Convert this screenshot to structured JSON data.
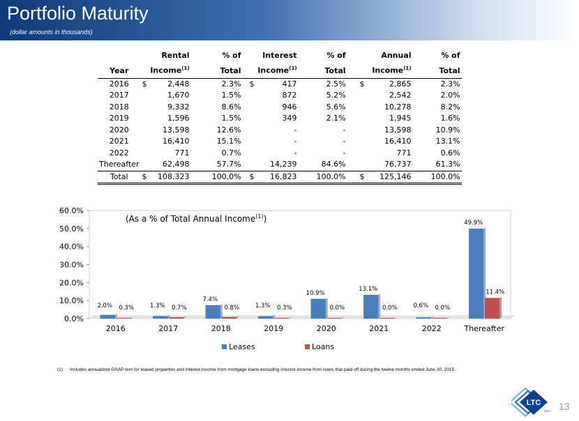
{
  "header": {
    "title": "Portfolio Maturity",
    "subtitle": "(dollar amounts in thousands)"
  },
  "table": {
    "headers": {
      "year": "Year",
      "rental": "Rental",
      "rental2": "Income",
      "pct": "% of",
      "pct2": "Total",
      "interest": "Interest",
      "interest2": "Income",
      "annual": "Annual",
      "annual2": "Income",
      "footnote_mark": "(1)"
    },
    "rows": [
      {
        "year": "2016",
        "rental_cur": "$",
        "rental": "2,448",
        "rental_pct": "2.3%",
        "int_cur": "$",
        "interest": "417",
        "int_pct": "2.5%",
        "ann_cur": "$",
        "annual": "2,865",
        "ann_pct": "2.3%"
      },
      {
        "year": "2017",
        "rental_cur": "",
        "rental": "1,670",
        "rental_pct": "1.5%",
        "int_cur": "",
        "interest": "872",
        "int_pct": "5.2%",
        "ann_cur": "",
        "annual": "2,542",
        "ann_pct": "2.0%"
      },
      {
        "year": "2018",
        "rental_cur": "",
        "rental": "9,332",
        "rental_pct": "8.6%",
        "int_cur": "",
        "interest": "946",
        "int_pct": "5.6%",
        "ann_cur": "",
        "annual": "10,278",
        "ann_pct": "8.2%"
      },
      {
        "year": "2019",
        "rental_cur": "",
        "rental": "1,596",
        "rental_pct": "1.5%",
        "int_cur": "",
        "interest": "349",
        "int_pct": "2.1%",
        "ann_cur": "",
        "annual": "1,945",
        "ann_pct": "1.6%"
      },
      {
        "year": "2020",
        "rental_cur": "",
        "rental": "13,598",
        "rental_pct": "12.6%",
        "int_cur": "",
        "interest": "-",
        "int_pct": "-",
        "ann_cur": "",
        "annual": "13,598",
        "ann_pct": "10.9%"
      },
      {
        "year": "2021",
        "rental_cur": "",
        "rental": "16,410",
        "rental_pct": "15.1%",
        "int_cur": "",
        "interest": "-",
        "int_pct": "-",
        "ann_cur": "",
        "annual": "16,410",
        "ann_pct": "13.1%"
      },
      {
        "year": "2022",
        "rental_cur": "",
        "rental": "771",
        "rental_pct": "0.7%",
        "int_cur": "",
        "interest": "-",
        "int_pct": "-",
        "ann_cur": "",
        "annual": "771",
        "ann_pct": "0.6%"
      },
      {
        "year": "Thereafter",
        "rental_cur": "",
        "rental": "62,498",
        "rental_pct": "57.7%",
        "int_cur": "",
        "interest": "14,239",
        "int_pct": "84.6%",
        "ann_cur": "",
        "annual": "76,737",
        "ann_pct": "61.3%"
      }
    ],
    "total": {
      "year": "Total",
      "rental_cur": "$",
      "rental": "108,323",
      "rental_pct": "100.0%",
      "int_cur": "$",
      "interest": "16,823",
      "int_pct": "100.0%",
      "ann_cur": "$",
      "annual": "125,146",
      "ann_pct": "100.0%"
    }
  },
  "chart_data": {
    "type": "bar",
    "title": "(As a % of Total Annual Income",
    "title_sup": "(1)",
    "title_close": ")",
    "categories": [
      "2016",
      "2017",
      "2018",
      "2019",
      "2020",
      "2021",
      "2022",
      "Thereafter"
    ],
    "series": [
      {
        "name": "Leases",
        "color": "#4a7ebf",
        "values": [
          2.0,
          1.3,
          7.4,
          1.3,
          10.9,
          13.1,
          0.6,
          49.9
        ],
        "labels": [
          "2.0%",
          "1.3%",
          "7.4%",
          "1.3%",
          "10.9%",
          "13.1%",
          "0.6%",
          "49.9%"
        ]
      },
      {
        "name": "Loans",
        "color": "#c0504d",
        "values": [
          0.3,
          0.7,
          0.8,
          0.3,
          0.0,
          0.0,
          0.0,
          11.4
        ],
        "labels": [
          "0.3%",
          "0.7%",
          "0.8%",
          "0.3%",
          "0.0%",
          "0.0%",
          "0.0%",
          "11.4%"
        ]
      }
    ],
    "yticks": [
      "0.0%",
      "10.0%",
      "20.0%",
      "30.0%",
      "40.0%",
      "50.0%",
      "60.0%"
    ],
    "ylim": [
      0,
      60
    ],
    "legend_position": "bottom",
    "grid": false
  },
  "footnote": {
    "mark": "(1)",
    "text": "Includes annualized GAAP rent for leased properties and interest income from mortgage loans excluding interest income from loans that paid off during the twelve months ended June 30, 2015."
  },
  "logo": {
    "text": "LTC",
    "subtext": "REIT"
  },
  "page_number": "13"
}
